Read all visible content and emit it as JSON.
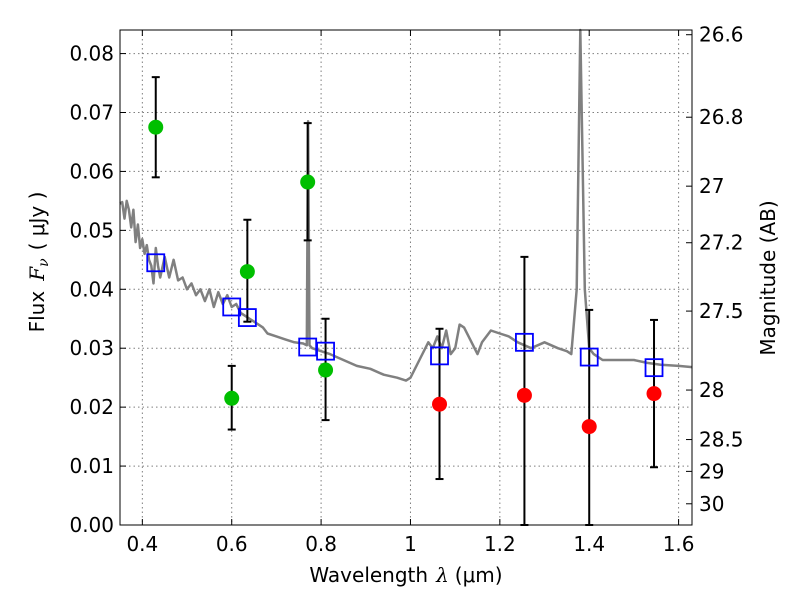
{
  "chart_data": {
    "type": "scatter",
    "xlabel_prefix": "Wavelength",
    "xlabel_symbol": "λ",
    "xlabel_unit": "(μm)",
    "ylabel_prefix": "Flux",
    "ylabel_symbol": "F",
    "ylabel_subscript": "ν",
    "ylabel_unit": "( μJy )",
    "y2label": "Magnitude (AB)",
    "xlim": [
      0.35,
      1.63
    ],
    "ylim": [
      0.0,
      0.084
    ],
    "grid": true,
    "xticks": [
      0.4,
      0.6,
      0.8,
      1.0,
      1.2,
      1.4,
      1.6
    ],
    "xtick_labels": [
      "0.4",
      "0.6",
      "0.8",
      "1",
      "1.2",
      "1.4",
      "1.6"
    ],
    "yticks": [
      0.0,
      0.01,
      0.02,
      0.03,
      0.04,
      0.05,
      0.06,
      0.07,
      0.08
    ],
    "ytick_labels": [
      "0.00",
      "0.01",
      "0.02",
      "0.03",
      "0.04",
      "0.05",
      "0.06",
      "0.07",
      "0.08"
    ],
    "magnitude_ticks": [
      {
        "label": "26.6",
        "flux": 0.0832
      },
      {
        "label": "26.8",
        "flux": 0.0692
      },
      {
        "label": "27",
        "flux": 0.0575
      },
      {
        "label": "27.2",
        "flux": 0.0479
      },
      {
        "label": "27.5",
        "flux": 0.0363
      },
      {
        "label": "28",
        "flux": 0.0229
      },
      {
        "label": "28.5",
        "flux": 0.0145
      },
      {
        "label": "29",
        "flux": 0.0091
      },
      {
        "label": "30",
        "flux": 0.0036
      }
    ],
    "series": [
      {
        "kind": "line",
        "color": "#808080",
        "points": [
          [
            0.35,
            0.0545
          ],
          [
            0.355,
            0.0548
          ],
          [
            0.36,
            0.052
          ],
          [
            0.365,
            0.055
          ],
          [
            0.37,
            0.0535
          ],
          [
            0.375,
            0.0505
          ],
          [
            0.38,
            0.0535
          ],
          [
            0.385,
            0.048
          ],
          [
            0.39,
            0.051
          ],
          [
            0.395,
            0.047
          ],
          [
            0.4,
            0.0485
          ],
          [
            0.405,
            0.046
          ],
          [
            0.41,
            0.0475
          ],
          [
            0.415,
            0.045
          ],
          [
            0.42,
            0.044
          ],
          [
            0.425,
            0.041
          ],
          [
            0.43,
            0.047
          ],
          [
            0.435,
            0.044
          ],
          [
            0.44,
            0.042
          ],
          [
            0.45,
            0.0455
          ],
          [
            0.46,
            0.042
          ],
          [
            0.47,
            0.045
          ],
          [
            0.48,
            0.0415
          ],
          [
            0.49,
            0.042
          ],
          [
            0.5,
            0.04
          ],
          [
            0.51,
            0.041
          ],
          [
            0.52,
            0.039
          ],
          [
            0.53,
            0.04
          ],
          [
            0.54,
            0.038
          ],
          [
            0.55,
            0.04
          ],
          [
            0.56,
            0.037
          ],
          [
            0.57,
            0.0395
          ],
          [
            0.58,
            0.0375
          ],
          [
            0.59,
            0.039
          ],
          [
            0.6,
            0.037
          ],
          [
            0.61,
            0.0375
          ],
          [
            0.62,
            0.036
          ],
          [
            0.63,
            0.0355
          ],
          [
            0.64,
            0.035
          ],
          [
            0.65,
            0.0345
          ],
          [
            0.66,
            0.034
          ],
          [
            0.67,
            0.0335
          ],
          [
            0.68,
            0.0325
          ],
          [
            0.7,
            0.032
          ],
          [
            0.72,
            0.0315
          ],
          [
            0.74,
            0.031
          ],
          [
            0.76,
            0.0308
          ],
          [
            0.768,
            0.0305
          ],
          [
            0.771,
            0.0685
          ],
          [
            0.774,
            0.0305
          ],
          [
            0.78,
            0.03
          ],
          [
            0.8,
            0.0295
          ],
          [
            0.82,
            0.029
          ],
          [
            0.85,
            0.028
          ],
          [
            0.88,
            0.027
          ],
          [
            0.91,
            0.0265
          ],
          [
            0.94,
            0.0255
          ],
          [
            0.97,
            0.025
          ],
          [
            0.99,
            0.0245
          ],
          [
            1.0,
            0.025
          ],
          [
            1.02,
            0.028
          ],
          [
            1.04,
            0.031
          ],
          [
            1.05,
            0.03
          ],
          [
            1.06,
            0.032
          ],
          [
            1.07,
            0.03
          ],
          [
            1.08,
            0.033
          ],
          [
            1.09,
            0.029
          ],
          [
            1.1,
            0.03
          ],
          [
            1.11,
            0.034
          ],
          [
            1.12,
            0.0335
          ],
          [
            1.13,
            0.032
          ],
          [
            1.15,
            0.029
          ],
          [
            1.16,
            0.031
          ],
          [
            1.18,
            0.033
          ],
          [
            1.2,
            0.0325
          ],
          [
            1.22,
            0.032
          ],
          [
            1.24,
            0.031
          ],
          [
            1.27,
            0.03
          ],
          [
            1.3,
            0.031
          ],
          [
            1.33,
            0.03
          ],
          [
            1.35,
            0.0295
          ],
          [
            1.36,
            0.029
          ],
          [
            1.372,
            0.04
          ],
          [
            1.38,
            0.084
          ],
          [
            1.39,
            0.04
          ],
          [
            1.4,
            0.03
          ],
          [
            1.41,
            0.029
          ],
          [
            1.43,
            0.028
          ],
          [
            1.46,
            0.028
          ],
          [
            1.5,
            0.028
          ],
          [
            1.53,
            0.0275
          ],
          [
            1.56,
            0.0272
          ],
          [
            1.6,
            0.027
          ],
          [
            1.63,
            0.0268
          ]
        ]
      },
      {
        "kind": "errorbar",
        "marker": "circle",
        "color": "#00bf00",
        "points": [
          {
            "x": 0.43,
            "y": 0.0675,
            "lo": 0.059,
            "hi": 0.076
          },
          {
            "x": 0.6,
            "y": 0.0215,
            "lo": 0.0162,
            "hi": 0.027
          },
          {
            "x": 0.635,
            "y": 0.043,
            "lo": 0.0345,
            "hi": 0.0518
          },
          {
            "x": 0.77,
            "y": 0.0582,
            "lo": 0.0483,
            "hi": 0.0682
          },
          {
            "x": 0.81,
            "y": 0.0263,
            "lo": 0.0178,
            "hi": 0.035
          }
        ]
      },
      {
        "kind": "errorbar",
        "marker": "circle",
        "color": "#ff0000",
        "points": [
          {
            "x": 1.065,
            "y": 0.0205,
            "lo": 0.0078,
            "hi": 0.0333
          },
          {
            "x": 1.255,
            "y": 0.022,
            "lo": 0.0,
            "hi": 0.0455
          },
          {
            "x": 1.4,
            "y": 0.0167,
            "lo": 0.0,
            "hi": 0.0365
          },
          {
            "x": 1.545,
            "y": 0.0223,
            "lo": 0.0098,
            "hi": 0.0348
          }
        ]
      },
      {
        "kind": "marker",
        "marker": "square",
        "color": "#0000ff",
        "points": [
          {
            "x": 0.43,
            "y": 0.0445
          },
          {
            "x": 0.6,
            "y": 0.037
          },
          {
            "x": 0.635,
            "y": 0.0352
          },
          {
            "x": 0.77,
            "y": 0.0302
          },
          {
            "x": 0.81,
            "y": 0.0295
          },
          {
            "x": 1.065,
            "y": 0.0287
          },
          {
            "x": 1.255,
            "y": 0.031
          },
          {
            "x": 1.4,
            "y": 0.0285
          },
          {
            "x": 1.545,
            "y": 0.0267
          }
        ]
      }
    ]
  }
}
